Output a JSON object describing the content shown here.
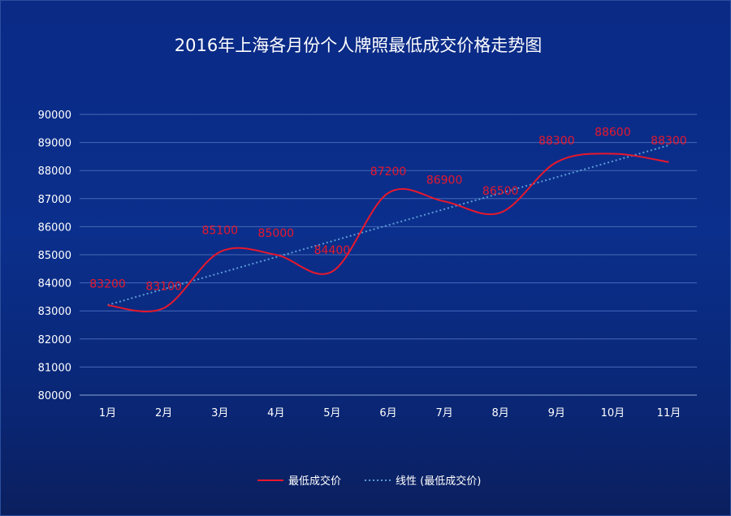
{
  "chart_data": {
    "type": "line",
    "title": "2016年上海各月份个人牌照最低成交价格走势图",
    "categories": [
      "1月",
      "2月",
      "3月",
      "4月",
      "5月",
      "6月",
      "7月",
      "8月",
      "9月",
      "10月",
      "11月"
    ],
    "series": [
      {
        "name": "最低成交价",
        "values": [
          83200,
          83100,
          85100,
          85000,
          84400,
          87200,
          86900,
          86500,
          88300,
          88600,
          88300
        ],
        "color": "#e8182c",
        "smooth": true
      }
    ],
    "trendline": {
      "name": "线性 (最低成交价)",
      "type": "linear",
      "color": "#5b9bd5",
      "dashed": true
    },
    "ylim": [
      80000,
      90000
    ],
    "yticks": [
      80000,
      81000,
      82000,
      83000,
      84000,
      85000,
      86000,
      87000,
      88000,
      89000,
      90000
    ],
    "grid": true,
    "legend_position": "bottom",
    "data_labels": true
  }
}
